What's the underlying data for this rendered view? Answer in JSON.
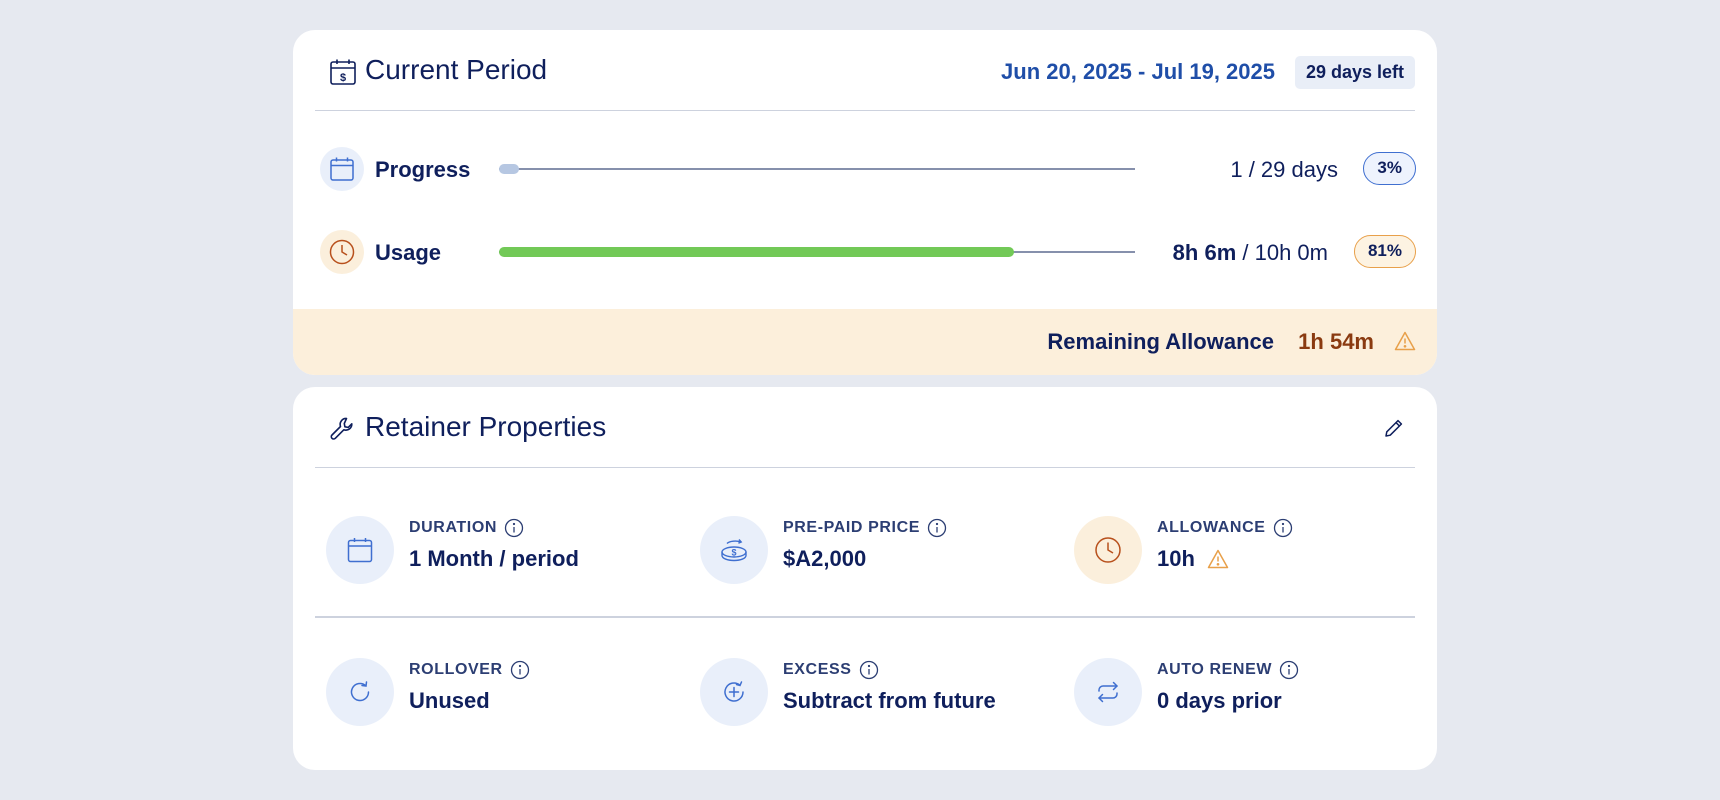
{
  "current_period": {
    "title": "Current Period",
    "date_range": "Jun 20, 2025 - Jul 19, 2025",
    "days_left": "29 days left",
    "progress": {
      "label": "Progress",
      "value_text": "1 / 29 days",
      "percent_label": "3%",
      "fraction": 0.03
    },
    "usage": {
      "label": "Usage",
      "used": "8h 6m",
      "separator": " / ",
      "total": "10h 0m",
      "percent_label": "81%",
      "fraction": 0.81
    },
    "remaining": {
      "label": "Remaining Allowance",
      "value": "1h 54m"
    }
  },
  "retainer": {
    "title": "Retainer Properties",
    "properties": [
      {
        "label": "DURATION",
        "value": "1 Month / period",
        "icon": "calendar-icon"
      },
      {
        "label": "PRE-PAID PRICE",
        "value": "$A2,000",
        "icon": "coins-icon"
      },
      {
        "label": "ALLOWANCE",
        "value": "10h",
        "icon": "clock-icon"
      },
      {
        "label": "ROLLOVER",
        "value": "Unused",
        "icon": "rotate-icon"
      },
      {
        "label": "EXCESS",
        "value": "Subtract from future",
        "icon": "plus-circle-icon"
      },
      {
        "label": "AUTO RENEW",
        "value": "0 days prior",
        "icon": "repeat-icon"
      }
    ]
  },
  "colors": {
    "background": "#e6e9f0",
    "primary_text": "#0f1f5c",
    "accent_blue": "#1f4ea8",
    "usage_fill": "#72c957",
    "warning_orange": "#e8a04a",
    "allowance_band": "#fcefdb",
    "remaining_value": "#8a3a10"
  }
}
